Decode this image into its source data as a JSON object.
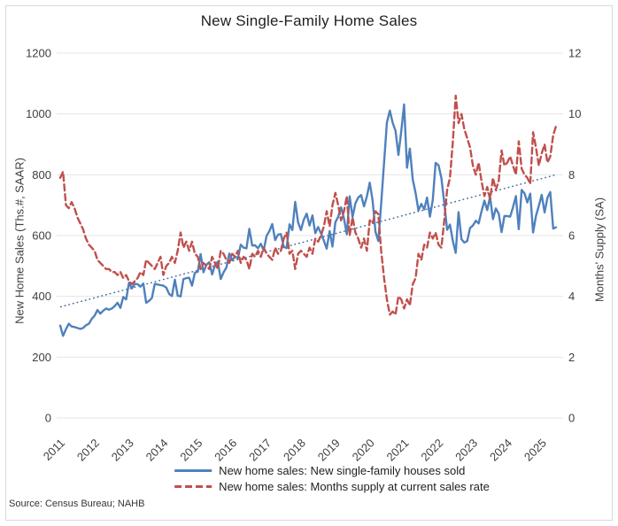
{
  "chart_data": {
    "type": "line",
    "title": "New Single-Family Home Sales",
    "source": "Source: Census Bureau; NAHB",
    "grid": "horizontal",
    "legend_position": "bottom",
    "frequency": "monthly",
    "start_period": "2011-01",
    "end_period": "2025-06",
    "left_axis": {
      "label": "New Home Sales (Ths.#, SAAR)",
      "min": 0,
      "max": 1200,
      "ticks": [
        "0",
        "200",
        "400",
        "600",
        "800",
        "1000",
        "1200"
      ]
    },
    "right_axis": {
      "label": "Months' Supply (SA)",
      "min": 0,
      "max": 12,
      "ticks": [
        "0",
        "2",
        "4",
        "6",
        "8",
        "10",
        "12"
      ]
    },
    "x_ticks": [
      "2011",
      "2012",
      "2013",
      "2014",
      "2015",
      "2016",
      "2017",
      "2018",
      "2019",
      "2020",
      "2021",
      "2022",
      "2023",
      "2024",
      "2025"
    ],
    "series": [
      {
        "name": "New home sales: New single-family houses sold",
        "axis": "left",
        "style": "solid",
        "color": "#4f81bd",
        "values": [
          304,
          270,
          292,
          310,
          301,
          299,
          296,
          293,
          296,
          305,
          310,
          326,
          336,
          355,
          343,
          353,
          360,
          356,
          360,
          368,
          379,
          362,
          398,
          390,
          445,
          426,
          441,
          440,
          432,
          442,
          379,
          385,
          395,
          441,
          439,
          437,
          435,
          429,
          408,
          401,
          455,
          402,
          400,
          457,
          460,
          461,
          435,
          478,
          481,
          539,
          479,
          504,
          512,
          472,
          503,
          514,
          457,
          479,
          495,
          541,
          519,
          531,
          525,
          570,
          560,
          558,
          622,
          567,
          568,
          558,
          573,
          551,
          599,
          615,
          638,
          585,
          603,
          605,
          563,
          559,
          637,
          618,
          711,
          643,
          618,
          652,
          672,
          633,
          666,
          608,
          628,
          607,
          583,
          557,
          615,
          564,
          644,
          662,
          693,
          656,
          604,
          729,
          661,
          706,
          725,
          733,
          696,
          729,
          774,
          716,
          612,
          582,
          704,
          840,
          972,
          1011,
          971,
          945,
          865,
          943,
          1031,
          823,
          886,
          784,
          740,
          683,
          704,
          686,
          725,
          662,
          717,
          839,
          831,
          790,
          707,
          619,
          636,
          582,
          543,
          677,
          588,
          577,
          582,
          625,
          633,
          649,
          640,
          679,
          715,
          684,
          728,
          654,
          689,
          672,
          611,
          664,
          664,
          662,
          693,
          730,
          621,
          750,
          739,
          709,
          738,
          610,
          664,
          698,
          734,
          676,
          724,
          743,
          623,
          627
        ]
      },
      {
        "name": "New home sales: Months supply at current sales rate",
        "axis": "right",
        "style": "dashed",
        "color": "#c0504d",
        "values": [
          7.9,
          8.1,
          7.0,
          6.9,
          7.1,
          6.9,
          6.6,
          6.4,
          6.2,
          5.9,
          5.7,
          5.6,
          5.5,
          5.2,
          5.1,
          5.0,
          4.9,
          4.9,
          4.8,
          4.8,
          4.7,
          4.8,
          4.6,
          4.7,
          4.5,
          4.4,
          4.5,
          4.6,
          4.8,
          4.7,
          5.2,
          5.1,
          5.0,
          4.9,
          5.1,
          5.3,
          4.7,
          5.0,
          5.1,
          5.3,
          5.1,
          5.5,
          6.1,
          5.6,
          5.8,
          5.5,
          5.8,
          5.4,
          5.3,
          4.9,
          5.1,
          5.0,
          4.9,
          5.3,
          5.1,
          4.9,
          5.5,
          5.4,
          5.2,
          5.1,
          5.4,
          5.3,
          5.5,
          5.1,
          5.3,
          5.2,
          4.9,
          5.4,
          5.3,
          5.5,
          5.3,
          5.6,
          5.4,
          5.3,
          5.2,
          5.6,
          5.4,
          5.5,
          5.9,
          6.1,
          5.4,
          5.5,
          4.9,
          5.4,
          5.5,
          5.4,
          5.3,
          5.6,
          5.4,
          5.9,
          5.8,
          6.0,
          6.3,
          6.8,
          6.3,
          7.0,
          7.4,
          7.0,
          6.5,
          6.8,
          7.3,
          6.0,
          6.6,
          6.1,
          5.9,
          5.6,
          5.9,
          5.5,
          6.5,
          6.4,
          6.8,
          6.7,
          5.5,
          4.6,
          3.9,
          3.4,
          3.5,
          3.4,
          4.0,
          3.9,
          3.6,
          3.9,
          3.7,
          4.4,
          4.6,
          5.4,
          5.2,
          5.7,
          5.6,
          6.1,
          5.9,
          6.1,
          5.7,
          5.6,
          6.5,
          7.5,
          7.9,
          9.1,
          10.6,
          9.7,
          10.0,
          9.5,
          9.2,
          8.9,
          8.3,
          8.0,
          8.4,
          7.8,
          7.3,
          7.6,
          7.2,
          7.9,
          7.5,
          7.8,
          8.8,
          8.3,
          8.4,
          8.6,
          8.3,
          8.0,
          9.1,
          8.2,
          8.0,
          7.9,
          7.7,
          9.4,
          8.9,
          8.3,
          8.7,
          9.0,
          8.4,
          8.6,
          9.3,
          9.6
        ]
      }
    ],
    "trendline": {
      "axis": "left",
      "style": "dotted",
      "color": "#3d6499",
      "start_value": 365,
      "end_value": 800
    }
  }
}
